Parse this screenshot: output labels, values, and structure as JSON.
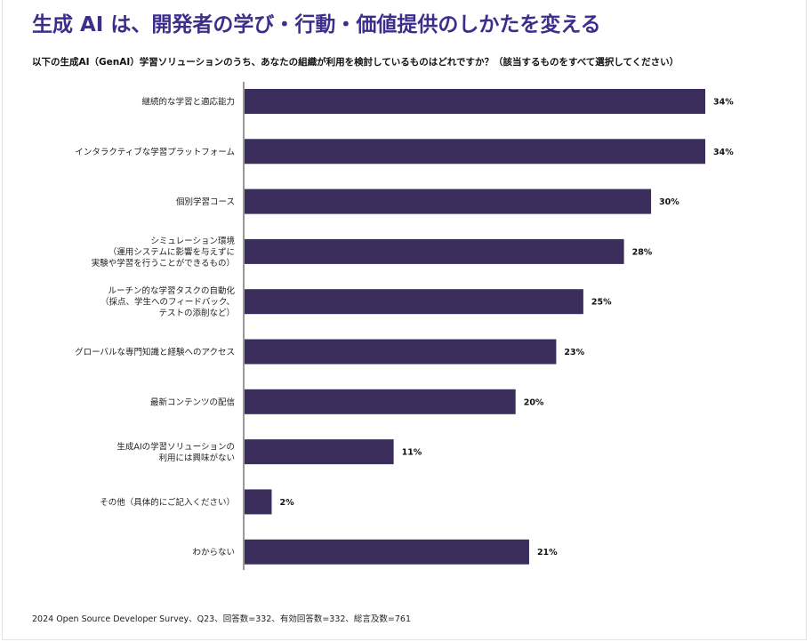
{
  "title": "生成 AI は、開発者の学び・行動・価値提供のしかたを変える",
  "question": "以下の生成AI（GenAI）学習ソリューションのうち、あなたの組織が利用を検討しているものはどれですか？（該当するものをすべて選択してください）",
  "footer": "2024 Open Source Developer Survey、Q23、回答数=332、有効回答数=332、総言及数=761",
  "colors": {
    "bar": "#3b2d5c",
    "title": "#3d2e8c",
    "axis": "#333333"
  },
  "chart_data": {
    "type": "bar",
    "orientation": "horizontal",
    "categories": [
      [
        "継続的な学習と適応能力"
      ],
      [
        "インタラクティブな学習プラットフォーム"
      ],
      [
        "個別学習コース"
      ],
      [
        "シミュレーション環境",
        "（運用システムに影響を与えずに",
        "実験や学習を行うことができるもの）"
      ],
      [
        "ルーチン的な学習タスクの自動化",
        "（採点、学生へのフィードバック、",
        "テストの添削など）"
      ],
      [
        "グローバルな専門知識と経験へのアクセス"
      ],
      [
        "最新コンテンツの配信"
      ],
      [
        "生成AIの学習ソリューションの",
        "利用には興味がない"
      ],
      [
        "その他（具体的にご記入ください）"
      ],
      [
        "わからない"
      ]
    ],
    "values": [
      34,
      34,
      30,
      28,
      25,
      23,
      20,
      11,
      2,
      21
    ],
    "value_labels": [
      "34%",
      "34%",
      "30%",
      "28%",
      "25%",
      "23%",
      "20%",
      "11%",
      "2%",
      "21%"
    ],
    "unit": "%",
    "xlim": [
      0,
      34
    ],
    "grid": false,
    "legend": "none"
  }
}
